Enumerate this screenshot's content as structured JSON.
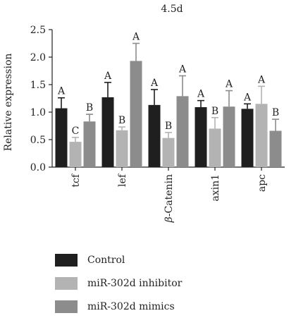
{
  "chart_data": {
    "type": "bar",
    "title": "4.5d",
    "ylabel": "Relative expression",
    "xlabel": "",
    "ylim": [
      0,
      2.5
    ],
    "yticks": [
      "0.0",
      "0.5",
      "1.0",
      "1.5",
      "2.0",
      "2.5"
    ],
    "categories": [
      "tcf",
      "lef",
      "β-Catenin",
      "axin1",
      "apc"
    ],
    "category_prefix_italic": [
      "",
      "",
      "β",
      "",
      ""
    ],
    "category_rest": [
      "tcf",
      "lef",
      "-Catenin",
      "axin1",
      "apc"
    ],
    "series": [
      {
        "name": "Control",
        "color": "#1f1f1f",
        "values": [
          1.07,
          1.27,
          1.13,
          1.09,
          1.06
        ],
        "errors": [
          0.19,
          0.27,
          0.28,
          0.12,
          0.09
        ],
        "labels": [
          "A",
          "A",
          "A",
          "A",
          "A"
        ]
      },
      {
        "name": "miR-302d inhibitor",
        "color": "#b3b3b3",
        "values": [
          0.46,
          0.67,
          0.53,
          0.7,
          1.15
        ],
        "errors": [
          0.08,
          0.06,
          0.1,
          0.2,
          0.32
        ],
        "labels": [
          "C",
          "B",
          "B",
          "B",
          "A"
        ]
      },
      {
        "name": "miR-302d mimics",
        "color": "#8c8c8c",
        "values": [
          0.83,
          1.93,
          1.29,
          1.1,
          0.66
        ],
        "errors": [
          0.13,
          0.32,
          0.37,
          0.29,
          0.21
        ],
        "labels": [
          "B",
          "A",
          "A",
          "A",
          "B"
        ]
      }
    ],
    "grid": false,
    "legend_position": "bottom"
  }
}
